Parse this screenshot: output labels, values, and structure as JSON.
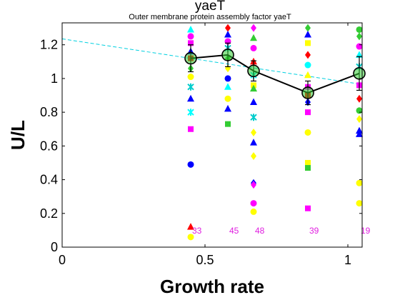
{
  "chart_data": {
    "type": "scatter",
    "title": "yaeT",
    "subtitle": "Outer membrane protein assembly factor yaeT",
    "xlabel": "Growth rate",
    "ylabel": "U/L",
    "xlim": [
      0,
      1.05
    ],
    "ylim": [
      0,
      1.33
    ],
    "x_ticks": [
      0,
      0.5,
      1
    ],
    "y_ticks": [
      0,
      0.2,
      0.4,
      0.6,
      0.8,
      1,
      1.2
    ],
    "x_tick_labels": [
      "0",
      "0.5",
      "1"
    ],
    "y_tick_labels": [
      "0",
      "0.2",
      "0.4",
      "0.6",
      "0.8",
      "1",
      "1.2"
    ],
    "grid": false,
    "mean_series": {
      "x": [
        0.45,
        0.58,
        0.67,
        0.86,
        1.04
      ],
      "y": [
        1.12,
        1.14,
        1.045,
        0.915,
        1.03
      ],
      "err": [
        0.08,
        0.07,
        0.06,
        0.07,
        0.1
      ],
      "color": "#000000",
      "marker_fill": "#33cc33"
    },
    "trend_line": {
      "x": [
        0,
        1.05
      ],
      "y": [
        1.235,
        0.965
      ],
      "color": "#00d0e0"
    },
    "counts": [
      {
        "x": 0.45,
        "label": "33"
      },
      {
        "x": 0.58,
        "label": "45"
      },
      {
        "x": 0.67,
        "label": "48"
      },
      {
        "x": 0.86,
        "label": "39"
      },
      {
        "x": 1.04,
        "label": "19"
      }
    ],
    "points": [
      {
        "x": 0.45,
        "y": 1.29,
        "c": "#00ffff",
        "m": "triangle"
      },
      {
        "x": 0.45,
        "y": 1.25,
        "c": "#ff00ff",
        "m": "circle"
      },
      {
        "x": 0.45,
        "y": 1.21,
        "c": "#ff00ff",
        "m": "square"
      },
      {
        "x": 0.45,
        "y": 1.16,
        "c": "#0000ff",
        "m": "triangle"
      },
      {
        "x": 0.45,
        "y": 1.12,
        "c": "#ff0000",
        "m": "square"
      },
      {
        "x": 0.45,
        "y": 1.06,
        "c": "#33cc33",
        "m": "diamond"
      },
      {
        "x": 0.45,
        "y": 1.01,
        "c": "#ffff00",
        "m": "circle"
      },
      {
        "x": 0.45,
        "y": 0.95,
        "c": "#00cccc",
        "m": "star"
      },
      {
        "x": 0.45,
        "y": 0.88,
        "c": "#0000ff",
        "m": "triangle"
      },
      {
        "x": 0.45,
        "y": 0.8,
        "c": "#00ffff",
        "m": "star"
      },
      {
        "x": 0.45,
        "y": 0.7,
        "c": "#ff00ff",
        "m": "square"
      },
      {
        "x": 0.45,
        "y": 0.49,
        "c": "#0000ff",
        "m": "circle"
      },
      {
        "x": 0.45,
        "y": 0.12,
        "c": "#ff0000",
        "m": "triangle"
      },
      {
        "x": 0.45,
        "y": 0.06,
        "c": "#ffff00",
        "m": "circle"
      },
      {
        "x": 0.58,
        "y": 1.3,
        "c": "#ff0000",
        "m": "diamond"
      },
      {
        "x": 0.58,
        "y": 1.26,
        "c": "#0000ff",
        "m": "triangle"
      },
      {
        "x": 0.58,
        "y": 1.22,
        "c": "#ff00ff",
        "m": "circle"
      },
      {
        "x": 0.58,
        "y": 1.18,
        "c": "#00cccc",
        "m": "star"
      },
      {
        "x": 0.58,
        "y": 1.12,
        "c": "#33cc33",
        "m": "diamond"
      },
      {
        "x": 0.58,
        "y": 1.06,
        "c": "#ffff00",
        "m": "diamond"
      },
      {
        "x": 0.58,
        "y": 1.0,
        "c": "#0000ff",
        "m": "circle"
      },
      {
        "x": 0.58,
        "y": 0.95,
        "c": "#00ffff",
        "m": "triangle"
      },
      {
        "x": 0.58,
        "y": 0.88,
        "c": "#ffff00",
        "m": "circle"
      },
      {
        "x": 0.58,
        "y": 0.82,
        "c": "#0000ff",
        "m": "triangle"
      },
      {
        "x": 0.58,
        "y": 0.73,
        "c": "#33cc33",
        "m": "square"
      },
      {
        "x": 0.67,
        "y": 1.3,
        "c": "#ff00ff",
        "m": "diamond"
      },
      {
        "x": 0.67,
        "y": 1.24,
        "c": "#33cc33",
        "m": "triangle"
      },
      {
        "x": 0.67,
        "y": 1.18,
        "c": "#ff00ff",
        "m": "circle"
      },
      {
        "x": 0.67,
        "y": 1.1,
        "c": "#ff0000",
        "m": "triangle"
      },
      {
        "x": 0.67,
        "y": 1.02,
        "c": "#00ffff",
        "m": "star"
      },
      {
        "x": 0.67,
        "y": 0.96,
        "c": "#ffff00",
        "m": "square"
      },
      {
        "x": 0.67,
        "y": 0.94,
        "c": "#33cc33",
        "m": "triangle"
      },
      {
        "x": 0.67,
        "y": 0.86,
        "c": "#0000ff",
        "m": "triangle"
      },
      {
        "x": 0.67,
        "y": 0.77,
        "c": "#00cccc",
        "m": "star"
      },
      {
        "x": 0.67,
        "y": 0.68,
        "c": "#ffff00",
        "m": "diamond"
      },
      {
        "x": 0.67,
        "y": 0.62,
        "c": "#0000ff",
        "m": "triangle"
      },
      {
        "x": 0.67,
        "y": 0.54,
        "c": "#ffff00",
        "m": "diamond"
      },
      {
        "x": 0.67,
        "y": 0.38,
        "c": "#0000ff",
        "m": "diamond"
      },
      {
        "x": 0.67,
        "y": 0.37,
        "c": "#ff00ff",
        "m": "diamond"
      },
      {
        "x": 0.67,
        "y": 0.26,
        "c": "#ff00ff",
        "m": "circle"
      },
      {
        "x": 0.67,
        "y": 0.21,
        "c": "#ffff00",
        "m": "circle"
      },
      {
        "x": 0.86,
        "y": 1.3,
        "c": "#33cc33",
        "m": "diamond"
      },
      {
        "x": 0.86,
        "y": 1.26,
        "c": "#0000ff",
        "m": "triangle"
      },
      {
        "x": 0.86,
        "y": 1.21,
        "c": "#ffff00",
        "m": "square"
      },
      {
        "x": 0.86,
        "y": 1.14,
        "c": "#ff0000",
        "m": "diamond"
      },
      {
        "x": 0.86,
        "y": 1.08,
        "c": "#00ffff",
        "m": "circle"
      },
      {
        "x": 0.86,
        "y": 1.02,
        "c": "#ffff00",
        "m": "triangle"
      },
      {
        "x": 0.86,
        "y": 0.95,
        "c": "#ff00ff",
        "m": "square"
      },
      {
        "x": 0.86,
        "y": 0.9,
        "c": "#ff0000",
        "m": "square"
      },
      {
        "x": 0.86,
        "y": 0.86,
        "c": "#0000ff",
        "m": "diamond"
      },
      {
        "x": 0.86,
        "y": 0.8,
        "c": "#ff00ff",
        "m": "square"
      },
      {
        "x": 0.86,
        "y": 0.68,
        "c": "#ffff00",
        "m": "circle"
      },
      {
        "x": 0.86,
        "y": 0.5,
        "c": "#ffff00",
        "m": "square"
      },
      {
        "x": 0.86,
        "y": 0.47,
        "c": "#33cc33",
        "m": "square"
      },
      {
        "x": 0.86,
        "y": 0.23,
        "c": "#ff00ff",
        "m": "square"
      },
      {
        "x": 1.04,
        "y": 1.29,
        "c": "#33cc33",
        "m": "circle"
      },
      {
        "x": 1.04,
        "y": 1.25,
        "c": "#33cc33",
        "m": "diamond"
      },
      {
        "x": 1.04,
        "y": 1.19,
        "c": "#ff00ff",
        "m": "circle"
      },
      {
        "x": 1.04,
        "y": 1.14,
        "c": "#00ffff",
        "m": "triangle"
      },
      {
        "x": 1.04,
        "y": 1.07,
        "c": "#00cccc",
        "m": "star"
      },
      {
        "x": 1.04,
        "y": 0.96,
        "c": "#ff00ff",
        "m": "square"
      },
      {
        "x": 1.04,
        "y": 0.88,
        "c": "#ff0000",
        "m": "diamond"
      },
      {
        "x": 1.04,
        "y": 0.81,
        "c": "#33cc33",
        "m": "circle"
      },
      {
        "x": 1.04,
        "y": 0.76,
        "c": "#ffff00",
        "m": "diamond"
      },
      {
        "x": 1.04,
        "y": 0.69,
        "c": "#0000ff",
        "m": "triangle"
      },
      {
        "x": 1.04,
        "y": 0.67,
        "c": "#0000ff",
        "m": "triangle"
      },
      {
        "x": 1.04,
        "y": 0.38,
        "c": "#ffff00",
        "m": "circle"
      },
      {
        "x": 1.04,
        "y": 0.26,
        "c": "#ffff00",
        "m": "circle"
      }
    ]
  }
}
